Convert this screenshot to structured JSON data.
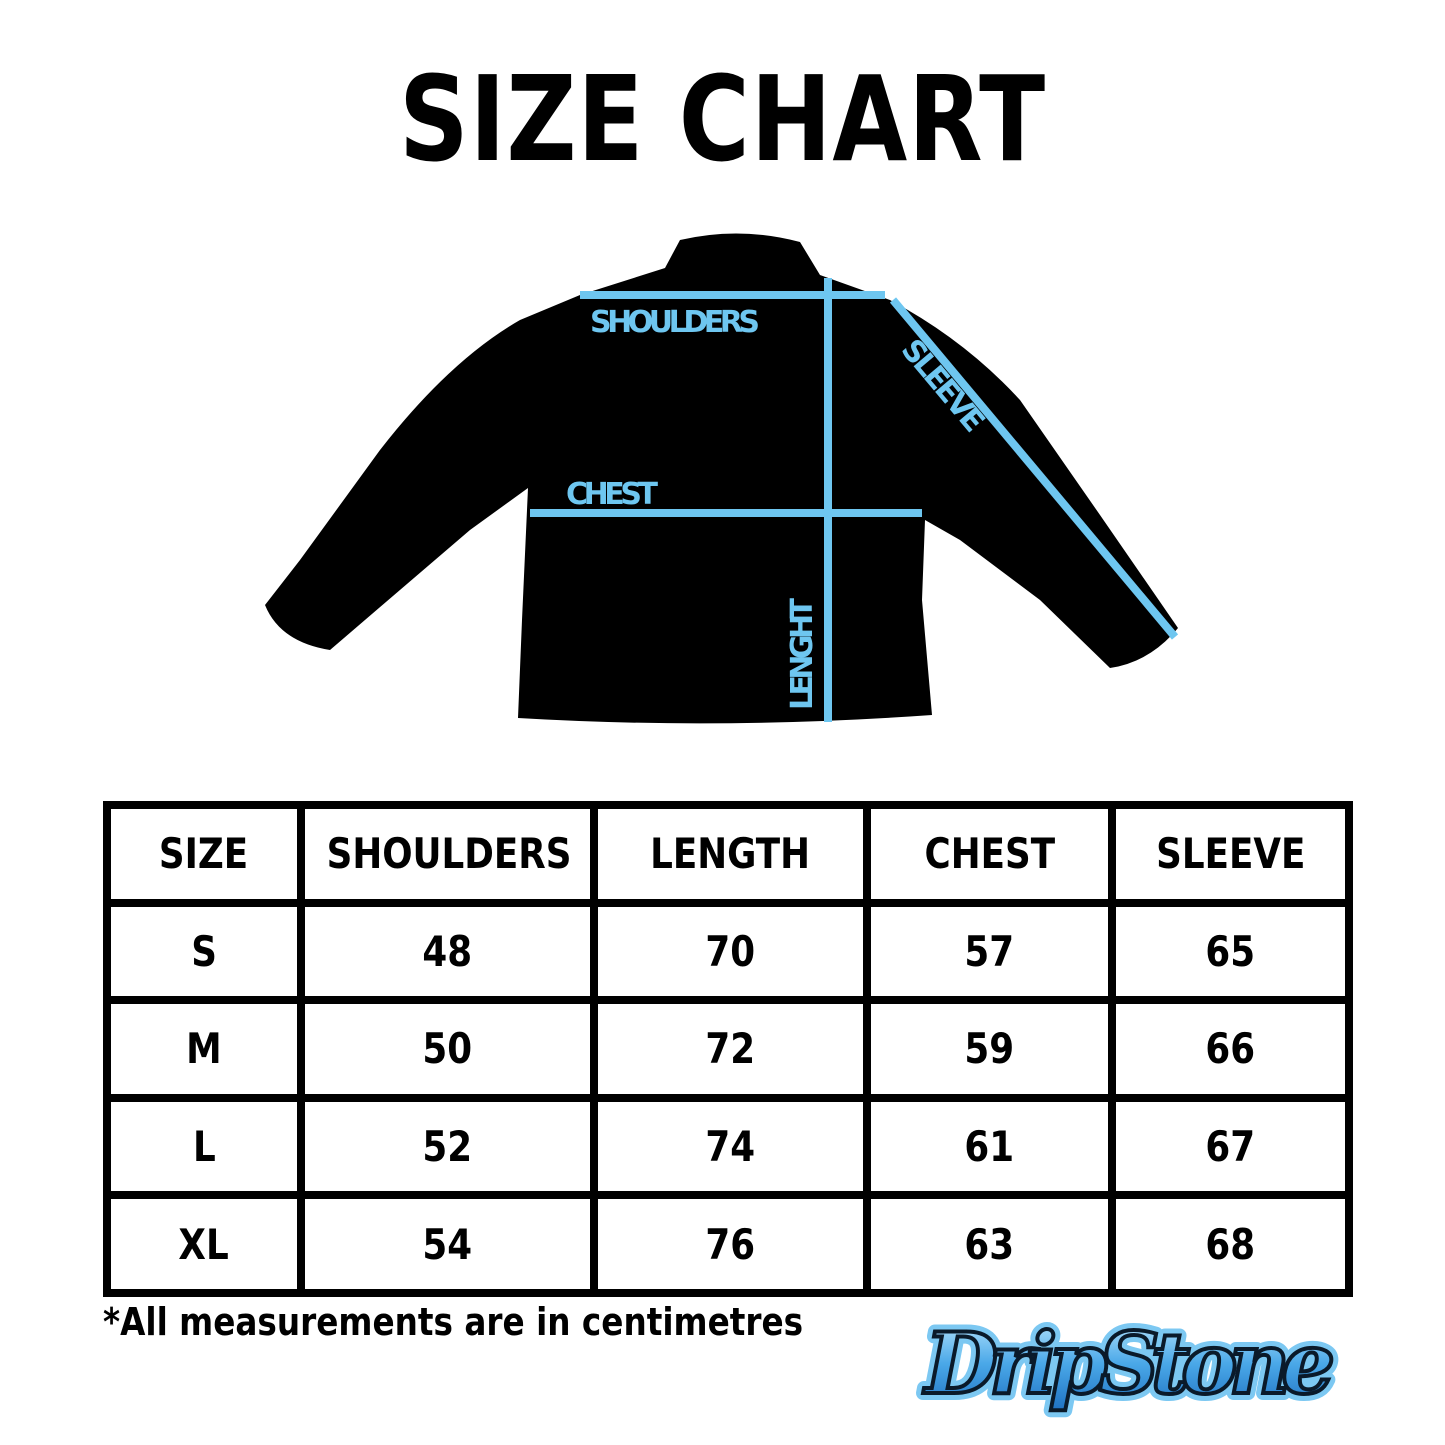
{
  "title": "SIZE CHART",
  "diagram": {
    "labels": {
      "shoulders": "SHOULDERS",
      "chest": "CHEST",
      "sleeve": "SLEEVE",
      "length": "LENGHT"
    },
    "line_color": "#6ec6f0",
    "garment_color": "#000000"
  },
  "table": {
    "headers": [
      "SIZE",
      "SHOULDERS",
      "LENGTH",
      "CHEST",
      "SLEEVE"
    ],
    "rows": [
      [
        "S",
        "48",
        "70",
        "57",
        "65"
      ],
      [
        "M",
        "50",
        "72",
        "59",
        "66"
      ],
      [
        "L",
        "52",
        "74",
        "61",
        "67"
      ],
      [
        "XL",
        "54",
        "76",
        "63",
        "68"
      ]
    ]
  },
  "note": "*All measurements are in centimetres",
  "logo": "DripStone"
}
